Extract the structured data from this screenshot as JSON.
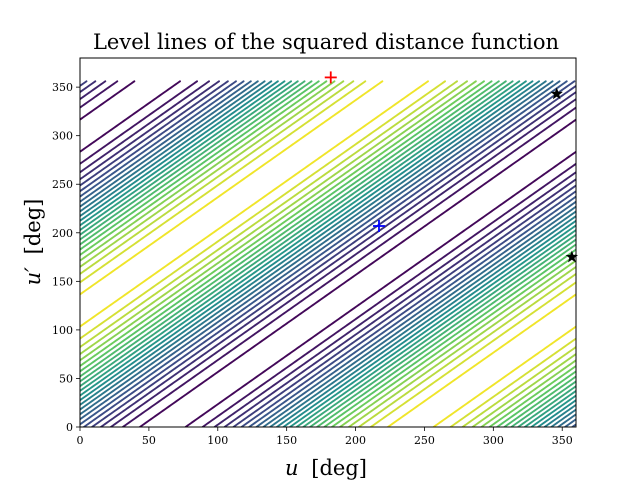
{
  "chart_data": {
    "type": "contour",
    "title": "Level lines of the squared distance function",
    "xlabel_var": "u",
    "xlabel_unit": "[deg]",
    "ylabel_var": "u′",
    "ylabel_unit": "[deg]",
    "xlim": [
      0,
      360
    ],
    "ylim": [
      0,
      380
    ],
    "x_ticks": [
      0,
      50,
      100,
      150,
      200,
      250,
      300,
      350
    ],
    "y_ticks": [
      0,
      50,
      100,
      150,
      200,
      250,
      300,
      350
    ],
    "grid": false,
    "colormap": "viridis",
    "colormap_stops": [
      "#440154",
      "#3b528b",
      "#21918c",
      "#5ec962",
      "#fde725"
    ],
    "field_model": {
      "function": "A*(1 - cos(u - u' + phase))",
      "amplitude": 1,
      "phase_deg": -60,
      "u_prime_max": 356
    },
    "levels": 24,
    "markers": [
      {
        "name": "maximum",
        "shape": "plus",
        "color": "#ff0000",
        "x": 182,
        "y": 360
      },
      {
        "name": "minimum",
        "shape": "plus",
        "color": "#0000ff",
        "x": 217,
        "y": 207
      },
      {
        "name": "star-1",
        "shape": "star",
        "color": "#000000",
        "x": 346,
        "y": 343
      },
      {
        "name": "star-2",
        "shape": "star",
        "color": "#000000",
        "x": 357,
        "y": 175
      }
    ]
  }
}
